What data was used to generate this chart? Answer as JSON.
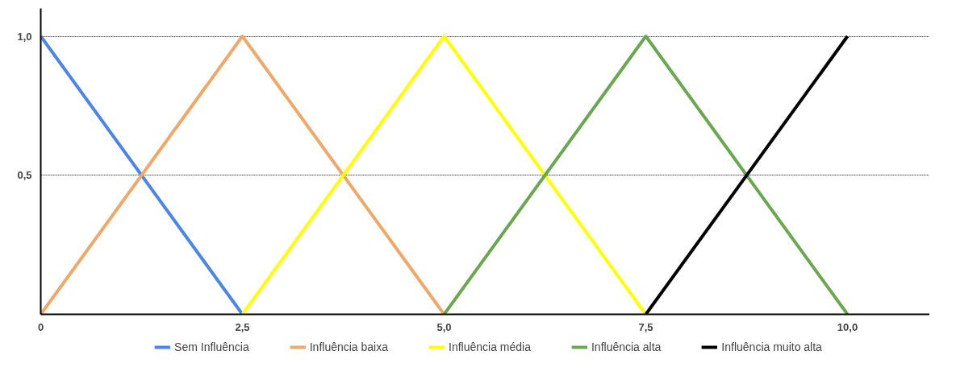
{
  "chart_data": {
    "type": "line",
    "series": [
      {
        "name": "Sem Influência",
        "color": "#4a86e8",
        "x": [
          0,
          2.5
        ],
        "values": [
          1,
          0
        ]
      },
      {
        "name": "Influência baixa",
        "color": "#f0a868",
        "x": [
          0,
          2.5,
          5
        ],
        "values": [
          0,
          1,
          0
        ]
      },
      {
        "name": "Influência média",
        "color": "#ffff00",
        "x": [
          2.5,
          5,
          7.5
        ],
        "values": [
          0,
          1,
          0
        ]
      },
      {
        "name": "Influência alta",
        "color": "#6aa84f",
        "x": [
          5,
          7.5,
          10
        ],
        "values": [
          0,
          1,
          0
        ]
      },
      {
        "name": "Influência muito alta",
        "color": "#000000",
        "x": [
          7.5,
          10
        ],
        "values": [
          0,
          1
        ]
      }
    ],
    "xlim": [
      0,
      11.1
    ],
    "ylim": [
      0,
      1.1
    ],
    "xticks": [
      {
        "value": 0,
        "label": "0"
      },
      {
        "value": 2.5,
        "label": "2,5"
      },
      {
        "value": 5,
        "label": "5,0"
      },
      {
        "value": 7.5,
        "label": "7,5"
      },
      {
        "value": 10,
        "label": "10,0"
      }
    ],
    "yticks": [
      {
        "value": 0.5,
        "label": "0,5"
      },
      {
        "value": 1,
        "label": "1,0"
      }
    ],
    "grid": "y",
    "legend": "bottom",
    "line_style": "solid"
  }
}
